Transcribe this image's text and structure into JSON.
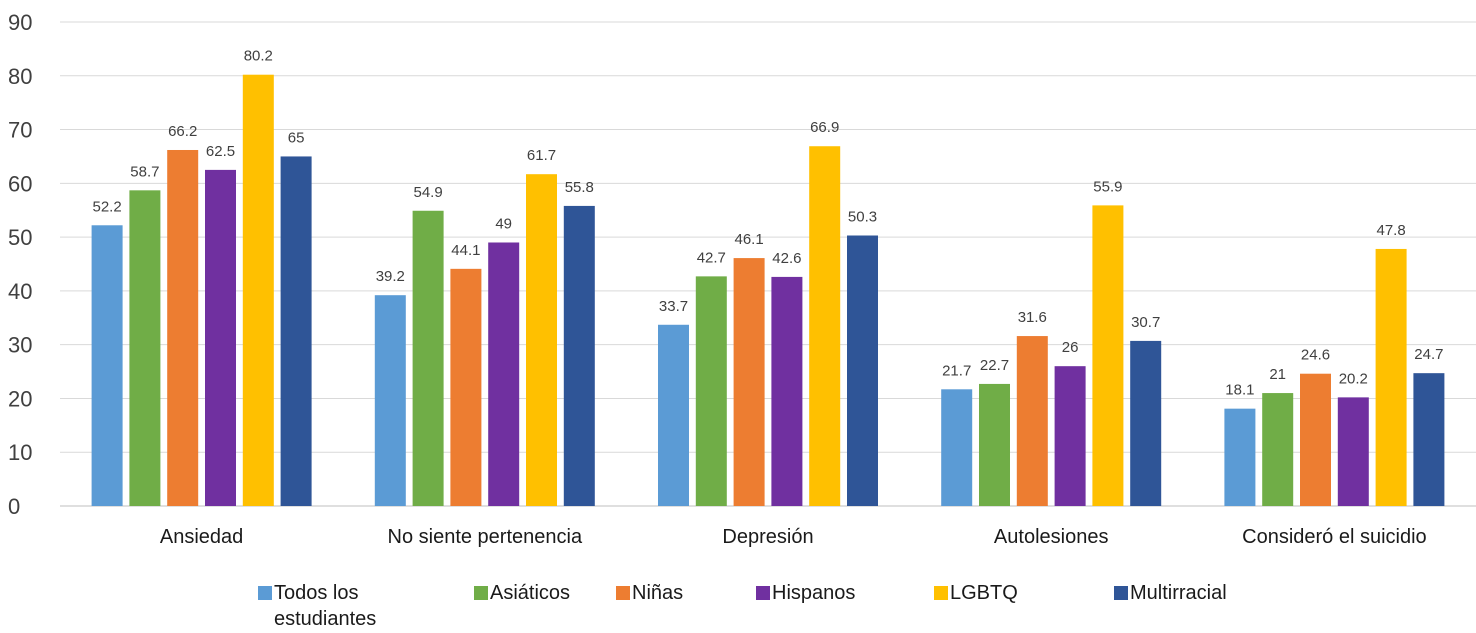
{
  "chart_data": {
    "type": "bar",
    "categories": [
      "Ansiedad",
      "No siente pertenencia",
      "Depresión",
      "Autolesiones",
      "Consideró el suicidio"
    ],
    "series": [
      {
        "name": "Todos los estudiantes",
        "color": "#5b9bd5",
        "values": [
          52.2,
          39.2,
          33.7,
          21.7,
          18.1
        ]
      },
      {
        "name": "Asiáticos",
        "color": "#70ad47",
        "values": [
          58.7,
          54.9,
          42.7,
          22.7,
          21
        ]
      },
      {
        "name": "Niñas",
        "color": "#ed7d31",
        "values": [
          66.2,
          44.1,
          46.1,
          31.6,
          24.6
        ]
      },
      {
        "name": "Hispanos",
        "color": "#7030a0",
        "values": [
          62.5,
          49,
          42.6,
          26,
          20.2
        ]
      },
      {
        "name": "LGBTQ",
        "color": "#ffc000",
        "values": [
          80.2,
          61.7,
          66.9,
          55.9,
          47.8
        ]
      },
      {
        "name": "Multirracial",
        "color": "#2f5597",
        "values": [
          65,
          55.8,
          50.3,
          30.7,
          24.7
        ]
      }
    ],
    "ylim": [
      0,
      90
    ],
    "yticks": [
      0,
      10,
      20,
      30,
      40,
      50,
      60,
      70,
      80,
      90
    ],
    "grid": true,
    "legend_position": "bottom"
  }
}
